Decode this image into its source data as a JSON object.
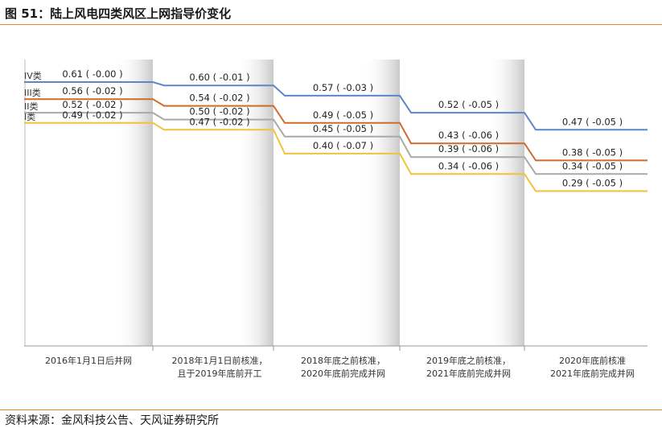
{
  "figure_title": "图 51：陆上风电四类风区上网指导价变化",
  "source": "资料来源：金风科技公告、天风证券研究所",
  "chart_data": {
    "type": "line",
    "title": "",
    "categories": [
      [
        "2016年1月1日后并网"
      ],
      [
        "2018年1月1日前核准，",
        "且于2019年底前开工"
      ],
      [
        "2018年底之前核准，",
        "2020年底前完成并网"
      ],
      [
        "2019年底之前核准，",
        "2021年底前完成并网"
      ],
      [
        "2020年底前核准",
        "2021年底前完成并网"
      ]
    ],
    "series": [
      {
        "name": "IV类",
        "color": "#5b86c8",
        "values": [
          0.61,
          0.6,
          0.57,
          0.52,
          0.47
        ],
        "labels": [
          "0.61 ( -0.00 )",
          "0.60 ( -0.01 )",
          "0.57 ( -0.03 )",
          "0.52 ( -0.05 )",
          "0.47 ( -0.05 )"
        ]
      },
      {
        "name": "III类",
        "color": "#d06a2c",
        "values": [
          0.56,
          0.54,
          0.49,
          0.43,
          0.38
        ],
        "labels": [
          "0.56 ( -0.02 )",
          "0.54 ( -0.02 )",
          "0.49 ( -0.05 )",
          "0.43 ( -0.06 )",
          "0.38 ( -0.05 )"
        ]
      },
      {
        "name": "II类",
        "color": "#a9a9a9",
        "values": [
          0.52,
          0.5,
          0.45,
          0.39,
          0.34
        ],
        "labels": [
          "0.52 ( -0.02 )",
          "0.50 ( -0.02 )",
          "0.45 ( -0.05 )",
          "0.39 ( -0.06 )",
          "0.34 ( -0.05 )"
        ]
      },
      {
        "name": "I类",
        "color": "#f2c23a",
        "values": [
          0.49,
          0.47,
          0.4,
          0.34,
          0.29
        ],
        "labels": [
          "0.49 ( -0.02 )",
          "0.47 ( -0.02 )",
          "0.40 ( -0.07 )",
          "0.34 ( -0.06 )",
          "0.29 ( -0.05 )"
        ]
      }
    ]
  }
}
